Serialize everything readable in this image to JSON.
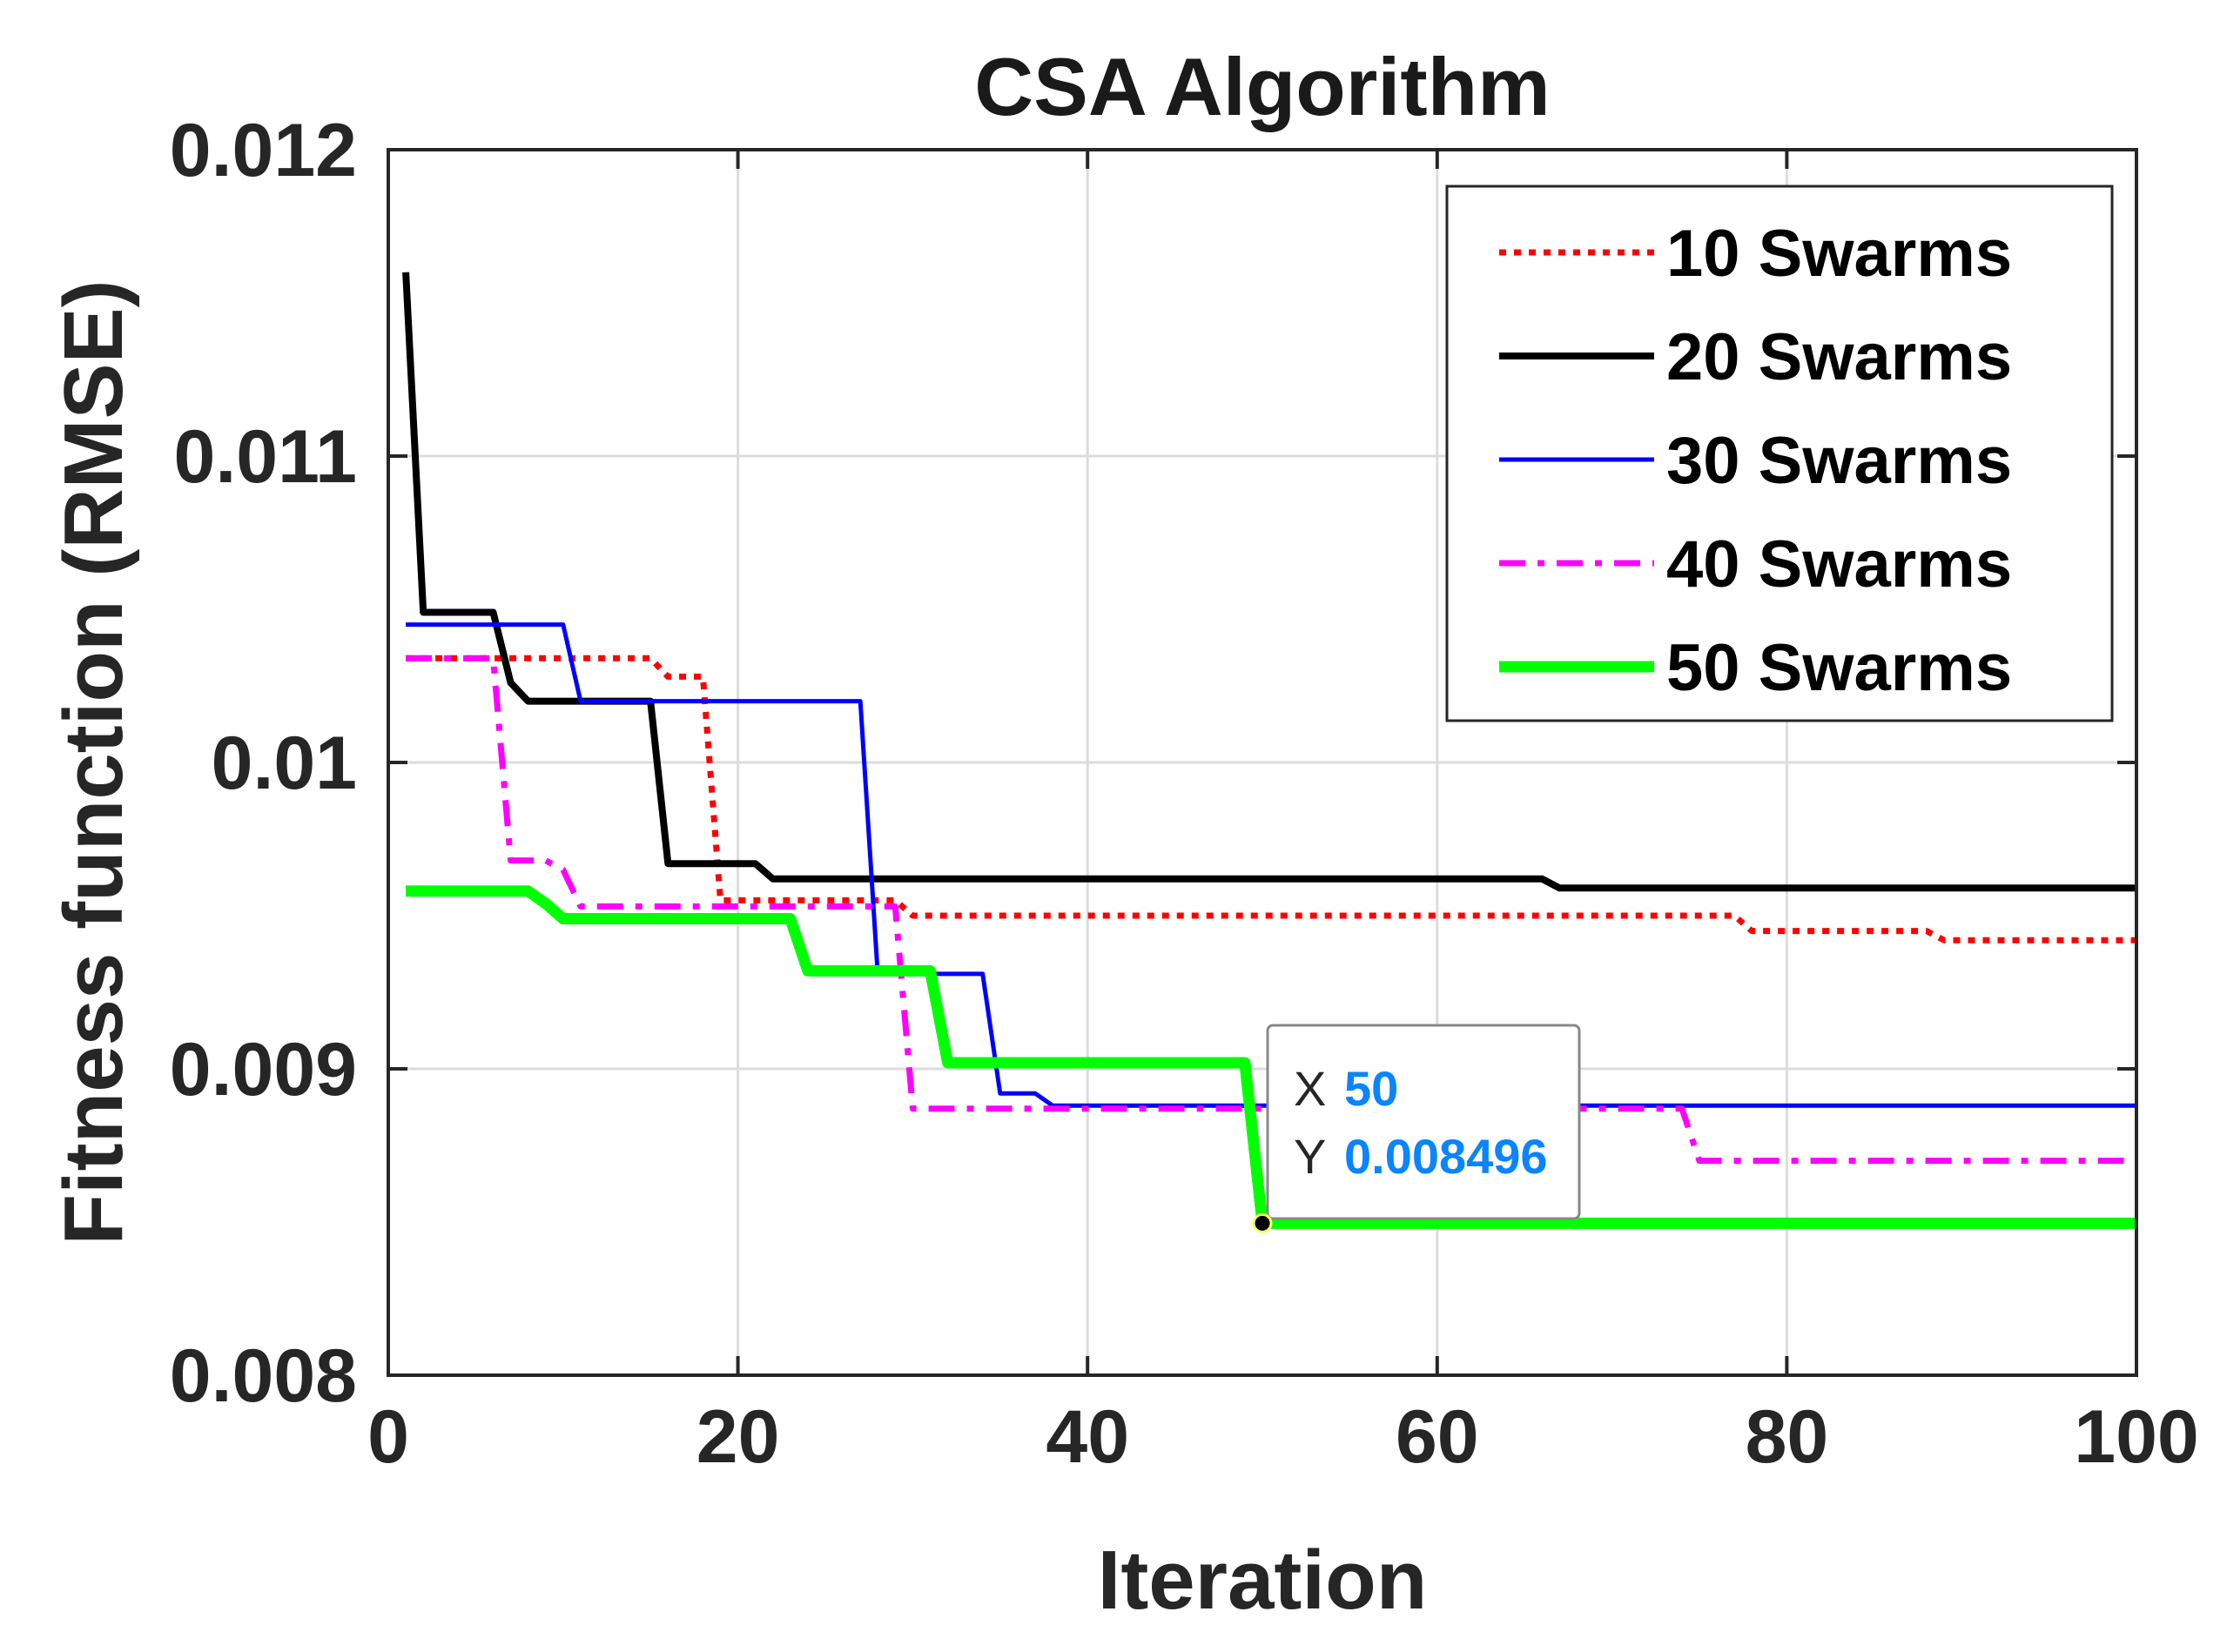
{
  "chart_data": {
    "type": "line",
    "title": "CSA Algorithm",
    "xlabel": "Iteration",
    "ylabel": "Fitness function (RMSE)",
    "xlim": [
      0,
      100
    ],
    "ylim": [
      0.008,
      0.012
    ],
    "xticks": [
      0,
      20,
      40,
      60,
      80,
      100
    ],
    "xtick_labels": [
      "0",
      "20",
      "40",
      "60",
      "80",
      "100"
    ],
    "yticks": [
      0.008,
      0.009,
      0.01,
      0.011,
      0.012
    ],
    "ytick_labels": [
      "0.008",
      "0.009",
      "0.01",
      "0.011",
      "0.012"
    ],
    "grid": true,
    "legend_position": "top-right",
    "series": [
      {
        "name": "10 Swarms",
        "color": "#ff0000",
        "style": "dotted",
        "points": [
          [
            1,
            0.01034
          ],
          [
            15,
            0.01034
          ],
          [
            16,
            0.01028
          ],
          [
            18,
            0.01028
          ],
          [
            19,
            0.00955
          ],
          [
            29,
            0.00955
          ],
          [
            30,
            0.0095
          ],
          [
            77,
            0.0095
          ],
          [
            78,
            0.00945
          ],
          [
            88,
            0.00945
          ],
          [
            89,
            0.00942
          ],
          [
            100,
            0.00942
          ]
        ]
      },
      {
        "name": "20 Swarms",
        "color": "#000000",
        "style": "solid",
        "points": [
          [
            1,
            0.0116
          ],
          [
            2,
            0.01049
          ],
          [
            6,
            0.01049
          ],
          [
            7,
            0.01026
          ],
          [
            8,
            0.0102
          ],
          [
            15,
            0.0102
          ],
          [
            16,
            0.00967
          ],
          [
            21,
            0.00967
          ],
          [
            22,
            0.00962
          ],
          [
            66,
            0.00962
          ],
          [
            67,
            0.00959
          ],
          [
            100,
            0.00959
          ]
        ]
      },
      {
        "name": "30 Swarms",
        "color": "#0000ff",
        "style": "solid",
        "points": [
          [
            1,
            0.01045
          ],
          [
            10,
            0.01045
          ],
          [
            11,
            0.0102
          ],
          [
            27,
            0.0102
          ],
          [
            28,
            0.00931
          ],
          [
            34,
            0.00931
          ],
          [
            35,
            0.00892
          ],
          [
            37,
            0.00892
          ],
          [
            38,
            0.00888
          ],
          [
            100,
            0.00888
          ]
        ]
      },
      {
        "name": "40 Swarms",
        "color": "#ff00ff",
        "style": "dashdot",
        "points": [
          [
            1,
            0.01034
          ],
          [
            6,
            0.01034
          ],
          [
            7,
            0.00968
          ],
          [
            9,
            0.00968
          ],
          [
            10,
            0.00965
          ],
          [
            11,
            0.00953
          ],
          [
            29,
            0.00953
          ],
          [
            30,
            0.00887
          ],
          [
            74,
            0.00887
          ],
          [
            75,
            0.0087
          ],
          [
            100,
            0.0087
          ]
        ]
      },
      {
        "name": "50 Swarms",
        "color": "#00ff00",
        "style": "solid",
        "points": [
          [
            1,
            0.00958
          ],
          [
            8,
            0.00958
          ],
          [
            9,
            0.00954
          ],
          [
            10,
            0.00949
          ],
          [
            23,
            0.00949
          ],
          [
            24,
            0.00932
          ],
          [
            31,
            0.00932
          ],
          [
            32,
            0.00902
          ],
          [
            49,
            0.00902
          ],
          [
            50,
            0.008496
          ],
          [
            100,
            0.008496
          ]
        ]
      }
    ],
    "datatip": {
      "x_key": "X",
      "x_value": "50",
      "y_key": "Y",
      "y_value": "0.008496",
      "x": 50,
      "y": 0.008496
    }
  }
}
